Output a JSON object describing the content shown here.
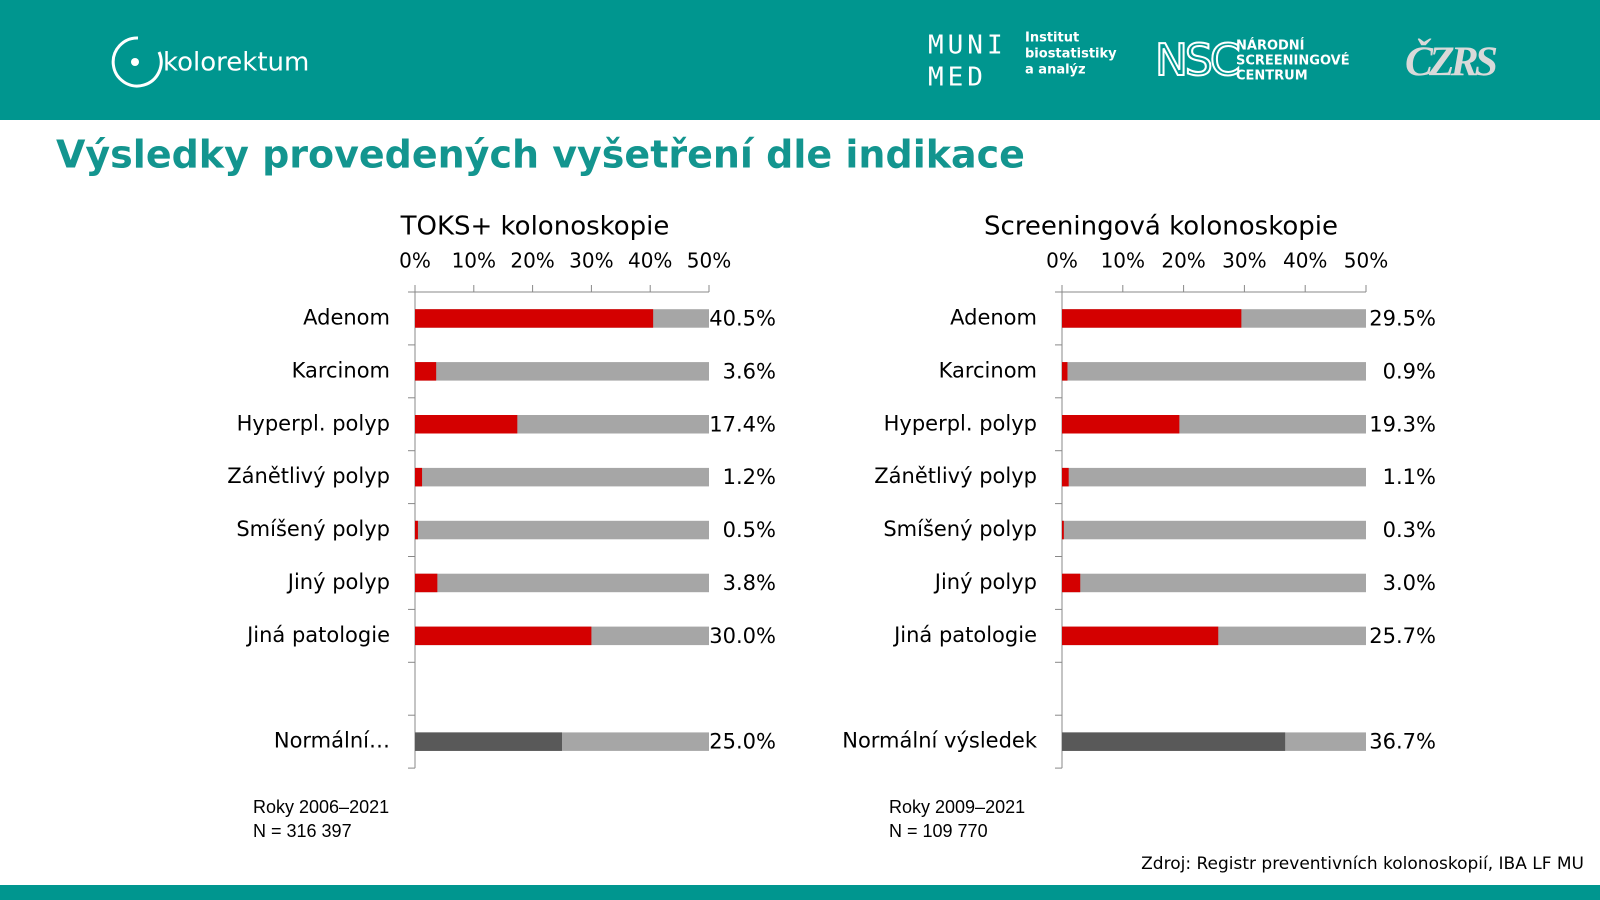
{
  "header": {
    "logo": "kolorektum",
    "muni": "MUNI",
    "med": "MED",
    "institute": [
      "Institut",
      "biostatistiky",
      "a analýz"
    ],
    "nsc": "NSC",
    "nsc_name": [
      "NÁRODNÍ",
      "SCREENINGOVÉ",
      "CENTRUM"
    ],
    "czrs": "ČZRS"
  },
  "title": "Výsledky provedených vyšetření dle indikace",
  "source": "Zdroj: Registr preventivních kolonoskopií, IBA LF MU",
  "chart_data": [
    {
      "type": "bar",
      "orientation": "horizontal",
      "title": "TOKS+ kolonoskopie",
      "categories": [
        "Adenom",
        "Karcinom",
        "Hyperpl. polyp",
        "Zánětlivý polyp",
        "Smíšený polyp",
        "Jiný polyp",
        "Jiná patologie",
        null,
        "Normální…"
      ],
      "values": [
        40.5,
        3.6,
        17.4,
        1.2,
        0.5,
        3.8,
        30.0,
        null,
        25.0
      ],
      "value_labels": [
        "40.5%",
        "3.6%",
        "17.4%",
        "1.2%",
        "0.5%",
        "3.8%",
        "30.0%",
        null,
        "25.0%"
      ],
      "colors": [
        "#d40000",
        "#d40000",
        "#d40000",
        "#d40000",
        "#d40000",
        "#d40000",
        "#d40000",
        null,
        "#595959"
      ],
      "background_color": "#a6a6a6",
      "xlim": [
        0,
        50
      ],
      "xticks": [
        {
          "value": 0,
          "label": "0%"
        },
        {
          "value": 10,
          "label": "10%"
        },
        {
          "value": 20,
          "label": "20%"
        },
        {
          "value": 30,
          "label": "30%"
        },
        {
          "value": 40,
          "label": "40%"
        },
        {
          "value": 50,
          "label": "50%"
        }
      ],
      "notes": [
        "Roky 2006–2021",
        "N = 316 397"
      ]
    },
    {
      "type": "bar",
      "orientation": "horizontal",
      "title": "Screeningová kolonoskopie",
      "categories": [
        "Adenom",
        "Karcinom",
        "Hyperpl. polyp",
        "Zánětlivý polyp",
        "Smíšený polyp",
        "Jiný polyp",
        "Jiná patologie",
        null,
        "Normální výsledek"
      ],
      "values": [
        29.5,
        0.9,
        19.3,
        1.1,
        0.3,
        3.0,
        25.7,
        null,
        36.7
      ],
      "value_labels": [
        "29.5%",
        "0.9%",
        "19.3%",
        "1.1%",
        "0.3%",
        "3.0%",
        "25.7%",
        null,
        "36.7%"
      ],
      "colors": [
        "#d40000",
        "#d40000",
        "#d40000",
        "#d40000",
        "#d40000",
        "#d40000",
        "#d40000",
        null,
        "#595959"
      ],
      "background_color": "#a6a6a6",
      "xlim": [
        0,
        50
      ],
      "xticks": [
        {
          "value": 0,
          "label": "0%"
        },
        {
          "value": 10,
          "label": "10%"
        },
        {
          "value": 20,
          "label": "20%"
        },
        {
          "value": 30,
          "label": "30%"
        },
        {
          "value": 40,
          "label": "40%"
        },
        {
          "value": 50,
          "label": "50%"
        }
      ],
      "notes": [
        "Roky 2009–2021",
        "N = 109 770"
      ]
    }
  ]
}
